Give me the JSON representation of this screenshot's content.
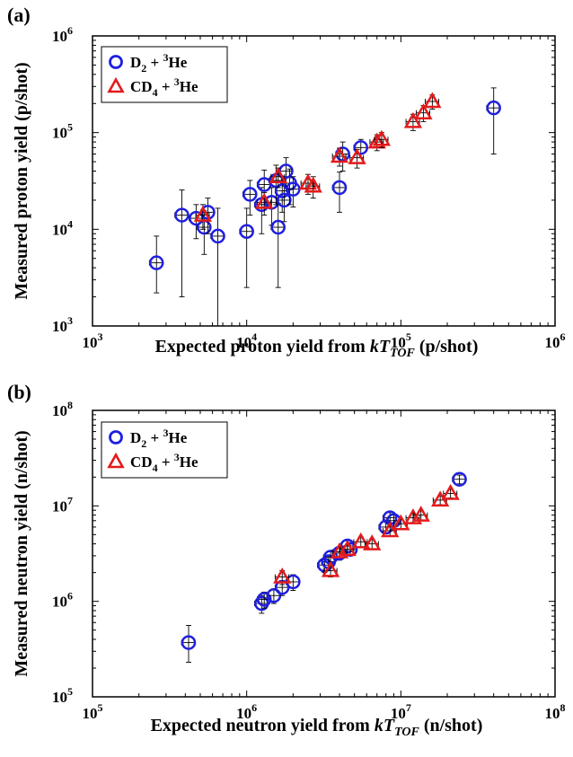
{
  "chart_data": [
    {
      "panel_label": "(a)",
      "type": "scatter",
      "xscale": "log",
      "yscale": "log",
      "xlim": [
        1000,
        1000000
      ],
      "ylim": [
        1000,
        1000000
      ],
      "xlabel_parts": [
        "Expected proton yield from ",
        "kT",
        "TOF",
        " (p/shot)"
      ],
      "ylabel": "Measured proton yield (p/shot)",
      "x_ticks": [
        {
          "base": "10",
          "exp": "3"
        },
        {
          "base": "10",
          "exp": "4"
        },
        {
          "base": "10",
          "exp": "5"
        },
        {
          "base": "10",
          "exp": "6"
        }
      ],
      "y_ticks": [
        {
          "base": "10",
          "exp": "3"
        },
        {
          "base": "10",
          "exp": "4"
        },
        {
          "base": "10",
          "exp": "5"
        },
        {
          "base": "10",
          "exp": "6"
        }
      ],
      "legend_position": "top-left",
      "series": [
        {
          "name": "D2 + 3He",
          "legend_parts": [
            "D",
            "2",
            " + ",
            "3",
            "He"
          ],
          "color": "#1f1fe0",
          "marker": "circle",
          "points": [
            [
              2600,
              4500,
              2300,
              4000
            ],
            [
              3800,
              14000,
              12000,
              11500
            ],
            [
              4700,
              13000,
              5000,
              5000
            ],
            [
              5300,
              10500,
              5000,
              5000
            ],
            [
              5600,
              15000,
              6000,
              6000
            ],
            [
              6500,
              8500,
              8000,
              8000
            ],
            [
              10000,
              9500,
              7000,
              7000
            ],
            [
              10500,
              23000,
              9000,
              9000
            ],
            [
              12500,
              18000,
              9000,
              9000
            ],
            [
              13000,
              29000,
              12000,
              12000
            ],
            [
              14500,
              19000,
              8000,
              8000
            ],
            [
              15500,
              32000,
              14000,
              14000
            ],
            [
              16000,
              10500,
              8000,
              8000
            ],
            [
              17000,
              25000,
              10000,
              10000
            ],
            [
              17500,
              20000,
              8000,
              8000
            ],
            [
              18000,
              40000,
              15000,
              15000
            ],
            [
              19000,
              30000,
              12000,
              12000
            ],
            [
              20000,
              26000,
              9000,
              9000
            ],
            [
              40000,
              27000,
              12000,
              12000
            ],
            [
              42000,
              60000,
              20000,
              20000
            ],
            [
              55000,
              70000,
              15000,
              15000
            ],
            [
              400000,
              180000,
              120000,
              110000
            ]
          ]
        },
        {
          "name": "CD4 + 3He",
          "legend_parts": [
            "CD",
            "4",
            " + ",
            "3",
            "He"
          ],
          "color": "#e41a1c",
          "marker": "triangle",
          "points": [
            [
              5200,
              14000,
              4000,
              4000
            ],
            [
              13000,
              19000,
              5000,
              5000
            ],
            [
              16000,
              35000,
              8000,
              8000
            ],
            [
              25000,
              30000,
              7000,
              7000
            ],
            [
              27000,
              28000,
              7000,
              7000
            ],
            [
              40000,
              57000,
              12000,
              12000
            ],
            [
              52000,
              55000,
              12000,
              12000
            ],
            [
              70000,
              80000,
              15000,
              15000
            ],
            [
              75000,
              85000,
              15000,
              15000
            ],
            [
              120000,
              130000,
              25000,
              25000
            ],
            [
              140000,
              160000,
              30000,
              30000
            ],
            [
              160000,
              210000,
              35000,
              35000
            ]
          ]
        }
      ]
    },
    {
      "panel_label": "(b)",
      "type": "scatter",
      "xscale": "log",
      "yscale": "log",
      "xlim": [
        100000,
        100000000
      ],
      "ylim": [
        100000,
        100000000
      ],
      "xlabel_parts": [
        "Expected neutron yield from ",
        "kT",
        "TOF",
        " (n/shot)"
      ],
      "ylabel": "Measured neutron yield (n/shot)",
      "x_ticks": [
        {
          "base": "10",
          "exp": "5"
        },
        {
          "base": "10",
          "exp": "6"
        },
        {
          "base": "10",
          "exp": "7"
        },
        {
          "base": "10",
          "exp": "8"
        }
      ],
      "y_ticks": [
        {
          "base": "10",
          "exp": "5"
        },
        {
          "base": "10",
          "exp": "6"
        },
        {
          "base": "10",
          "exp": "7"
        },
        {
          "base": "10",
          "exp": "8"
        }
      ],
      "legend_position": "top-left",
      "series": [
        {
          "name": "D2 + 3He",
          "legend_parts": [
            "D",
            "2",
            " + ",
            "3",
            "He"
          ],
          "color": "#1f1fe0",
          "marker": "circle",
          "points": [
            [
              420000,
              370000,
              140000,
              190000
            ],
            [
              1250000,
              950000,
              200000,
              200000
            ],
            [
              1300000,
              1050000,
              200000,
              200000
            ],
            [
              1500000,
              1150000,
              200000,
              200000
            ],
            [
              1700000,
              1400000,
              250000,
              250000
            ],
            [
              2000000,
              1600000,
              300000,
              300000
            ],
            [
              3200000,
              2400000,
              400000,
              400000
            ],
            [
              3400000,
              2600000,
              400000,
              400000
            ],
            [
              3500000,
              2900000,
              400000,
              400000
            ],
            [
              4000000,
              3200000,
              500000,
              500000
            ],
            [
              4500000,
              3800000,
              500000,
              500000
            ],
            [
              4700000,
              3500000,
              500000,
              500000
            ],
            [
              8000000,
              6000000,
              900000,
              900000
            ],
            [
              8500000,
              7500000,
              1000000,
              1000000
            ],
            [
              9000000,
              7000000,
              1000000,
              1000000
            ],
            [
              24000000,
              19000000,
              2000000,
              2000000
            ]
          ]
        },
        {
          "name": "CD4 + 3He",
          "legend_parts": [
            "CD",
            "4",
            " + ",
            "3",
            "He"
          ],
          "color": "#e41a1c",
          "marker": "triangle",
          "points": [
            [
              1700000,
              1800000,
              300000,
              300000
            ],
            [
              3500000,
              2100000,
              300000,
              300000
            ],
            [
              4000000,
              3300000,
              400000,
              400000
            ],
            [
              4500000,
              3500000,
              400000,
              400000
            ],
            [
              5500000,
              4200000,
              500000,
              500000
            ],
            [
              6500000,
              4000000,
              500000,
              500000
            ],
            [
              8500000,
              5500000,
              700000,
              700000
            ],
            [
              10000000,
              6500000,
              700000,
              700000
            ],
            [
              12000000,
              7500000,
              800000,
              800000
            ],
            [
              13500000,
              8000000,
              900000,
              900000
            ],
            [
              18000000,
              11500000,
              1200000,
              1200000
            ],
            [
              21000000,
              13500000,
              1400000,
              1400000
            ]
          ]
        }
      ]
    }
  ]
}
